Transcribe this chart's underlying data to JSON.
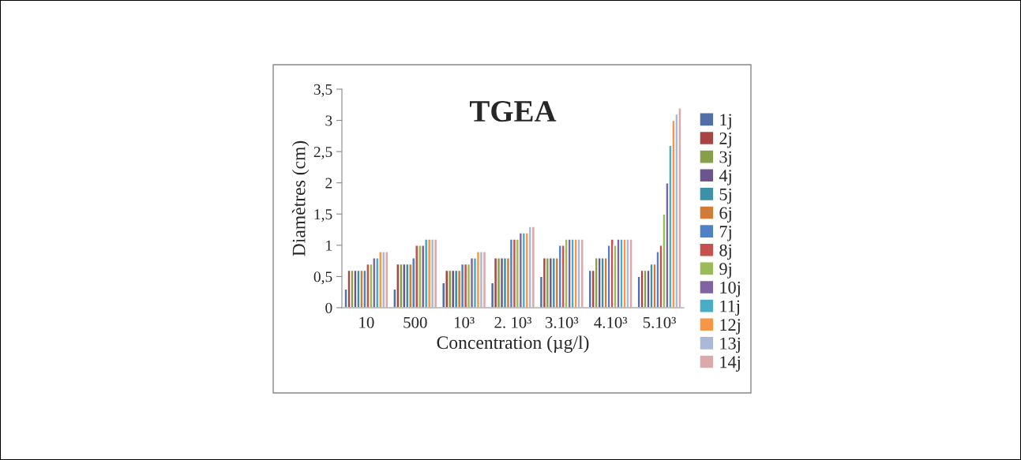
{
  "chart_data": {
    "type": "bar",
    "title": "TGEA",
    "xlabel": "Concentration (µg/l)",
    "ylabel": "Diamètres (cm)",
    "categories": [
      "10",
      "500",
      "10³",
      "2. 10³",
      "3.10³",
      "4.10³",
      "5.10³"
    ],
    "ylim": [
      0,
      3.5
    ],
    "yticks": [
      0,
      {
        "value": 0.5,
        "label": "0,5"
      },
      1,
      {
        "value": 1.5,
        "label": "1,5"
      },
      2,
      {
        "value": 2.5,
        "label": "2,5"
      },
      3,
      {
        "value": 3.5,
        "label": "3,5"
      }
    ],
    "grid": false,
    "legend": "right",
    "series": [
      {
        "name": "1j",
        "color": "#4f6fa6",
        "values": [
          0.3,
          0.3,
          0.4,
          0.4,
          0.5,
          0.6,
          0.5
        ]
      },
      {
        "name": "2j",
        "color": "#a84444",
        "values": [
          0.6,
          0.7,
          0.6,
          0.8,
          0.8,
          0.6,
          0.6
        ]
      },
      {
        "name": "3j",
        "color": "#86a04a",
        "values": [
          0.6,
          0.7,
          0.6,
          0.8,
          0.8,
          0.8,
          0.6
        ]
      },
      {
        "name": "4j",
        "color": "#6b558f",
        "values": [
          0.6,
          0.7,
          0.6,
          0.8,
          0.8,
          0.8,
          0.6
        ]
      },
      {
        "name": "5j",
        "color": "#3d91a6",
        "values": [
          0.6,
          0.7,
          0.6,
          0.8,
          0.8,
          0.8,
          0.7
        ]
      },
      {
        "name": "6j",
        "color": "#d07b38",
        "values": [
          0.6,
          0.7,
          0.6,
          0.8,
          0.8,
          0.8,
          0.7
        ]
      },
      {
        "name": "7j",
        "color": "#4f81c4",
        "values": [
          0.6,
          0.8,
          0.7,
          1.1,
          1.0,
          1.0,
          0.9
        ]
      },
      {
        "name": "8j",
        "color": "#c5504d",
        "values": [
          0.7,
          1.0,
          0.7,
          1.1,
          1.0,
          1.1,
          1.0
        ]
      },
      {
        "name": "9j",
        "color": "#9bbb59",
        "values": [
          0.7,
          1.0,
          0.7,
          1.1,
          1.1,
          1.0,
          1.5
        ]
      },
      {
        "name": "10j",
        "color": "#8064a2",
        "values": [
          0.8,
          1.0,
          0.8,
          1.2,
          1.1,
          1.1,
          2.0
        ]
      },
      {
        "name": "11j",
        "color": "#4bacc6",
        "values": [
          0.8,
          1.1,
          0.8,
          1.2,
          1.1,
          1.1,
          2.6
        ]
      },
      {
        "name": "12j",
        "color": "#f79646",
        "values": [
          0.9,
          1.1,
          0.9,
          1.2,
          1.1,
          1.1,
          3.0
        ]
      },
      {
        "name": "13j",
        "color": "#aab9d7",
        "values": [
          0.9,
          1.1,
          0.9,
          1.3,
          1.1,
          1.1,
          3.1
        ]
      },
      {
        "name": "14j",
        "color": "#dba9a9",
        "values": [
          0.9,
          1.1,
          0.9,
          1.3,
          1.1,
          1.1,
          3.2
        ]
      }
    ]
  }
}
